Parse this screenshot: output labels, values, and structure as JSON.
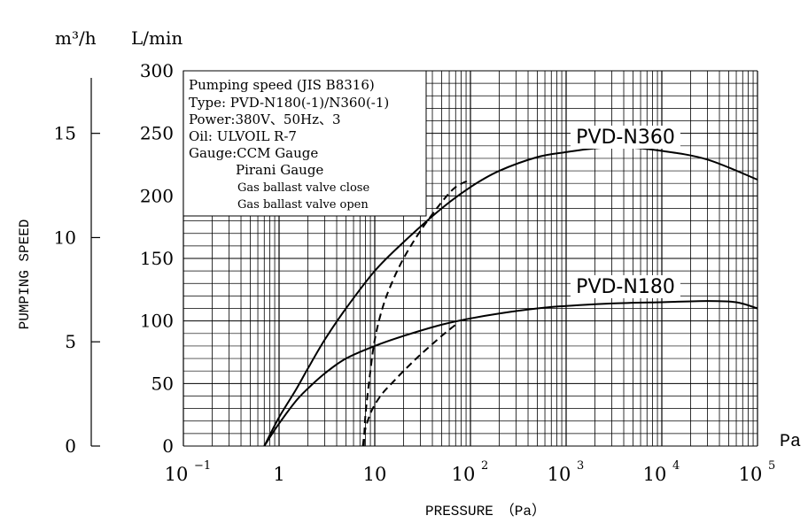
{
  "chart_data": {
    "type": "line",
    "ylabel": "PUMPING SPEED",
    "xlabel": "PRESSURE　（Pa）",
    "x_unit": "Pa",
    "units": {
      "left": "m³/h",
      "right": "L/min"
    },
    "x_scale": "log",
    "xlim": [
      0.1,
      100000
    ],
    "ylim": [
      0,
      300
    ],
    "x_ticks": [
      {
        "base": "10",
        "exp": "−1"
      },
      {
        "base": "1",
        "exp": ""
      },
      {
        "base": "10",
        "exp": ""
      },
      {
        "base": "10",
        "exp": "2"
      },
      {
        "base": "10",
        "exp": "3"
      },
      {
        "base": "10",
        "exp": "4"
      },
      {
        "base": "10",
        "exp": "5"
      }
    ],
    "y_ticks_lmin": [
      "0",
      "50",
      "100",
      "150",
      "200",
      "250",
      "300"
    ],
    "y_ticks_m3h": [
      "0",
      "5",
      "10",
      "15"
    ],
    "grid": true,
    "legend": {
      "placement": "top-left",
      "lines": [
        "Pumping speed (JIS B8316)",
        "Type: PVD-N180(-1)/N360(-1)",
        "Power:380V、50Hz、3",
        "Oil: ULVOIL R-7",
        "Gauge:CCM Gauge",
        "Pirani Gauge",
        "Gas ballast valve close",
        "Gas ballast valve open"
      ]
    },
    "series": [
      {
        "name": "PVD-N360",
        "style": "solid",
        "x": [
          0.7,
          1,
          1.5,
          2,
          3,
          5,
          10,
          20,
          50,
          100,
          200,
          500,
          1000,
          2000,
          4000,
          10000,
          30000,
          100000
        ],
        "values": [
          0,
          23,
          45,
          62,
          85,
          110,
          140,
          163,
          190,
          207,
          220,
          231,
          235,
          238,
          239,
          236,
          229,
          213
        ]
      },
      {
        "name": "PVD-N360",
        "style": "dashed",
        "x": [
          7.7,
          8,
          9,
          10,
          12,
          15,
          20,
          30,
          50,
          70,
          100
        ],
        "values": [
          0,
          25,
          60,
          85,
          110,
          130,
          150,
          172,
          195,
          207,
          213
        ]
      },
      {
        "name": "PVD-N180",
        "style": "solid",
        "x": [
          0.7,
          1,
          1.5,
          2,
          3,
          5,
          10,
          20,
          50,
          100,
          200,
          500,
          1000,
          3000,
          10000,
          30000,
          60000,
          100000
        ],
        "values": [
          0,
          18,
          36,
          46,
          58,
          70,
          80,
          88,
          97,
          102,
          106,
          110,
          112,
          114,
          115,
          116,
          115,
          110
        ]
      },
      {
        "name": "PVD-N180",
        "style": "dashed",
        "x": [
          7.5,
          8,
          9,
          10,
          12,
          15,
          20,
          30,
          50,
          70
        ],
        "values": [
          0,
          14,
          26,
          33,
          42,
          50,
          60,
          73,
          88,
          97
        ]
      }
    ],
    "series_labels": [
      "PVD-N360",
      "PVD-N180"
    ]
  }
}
